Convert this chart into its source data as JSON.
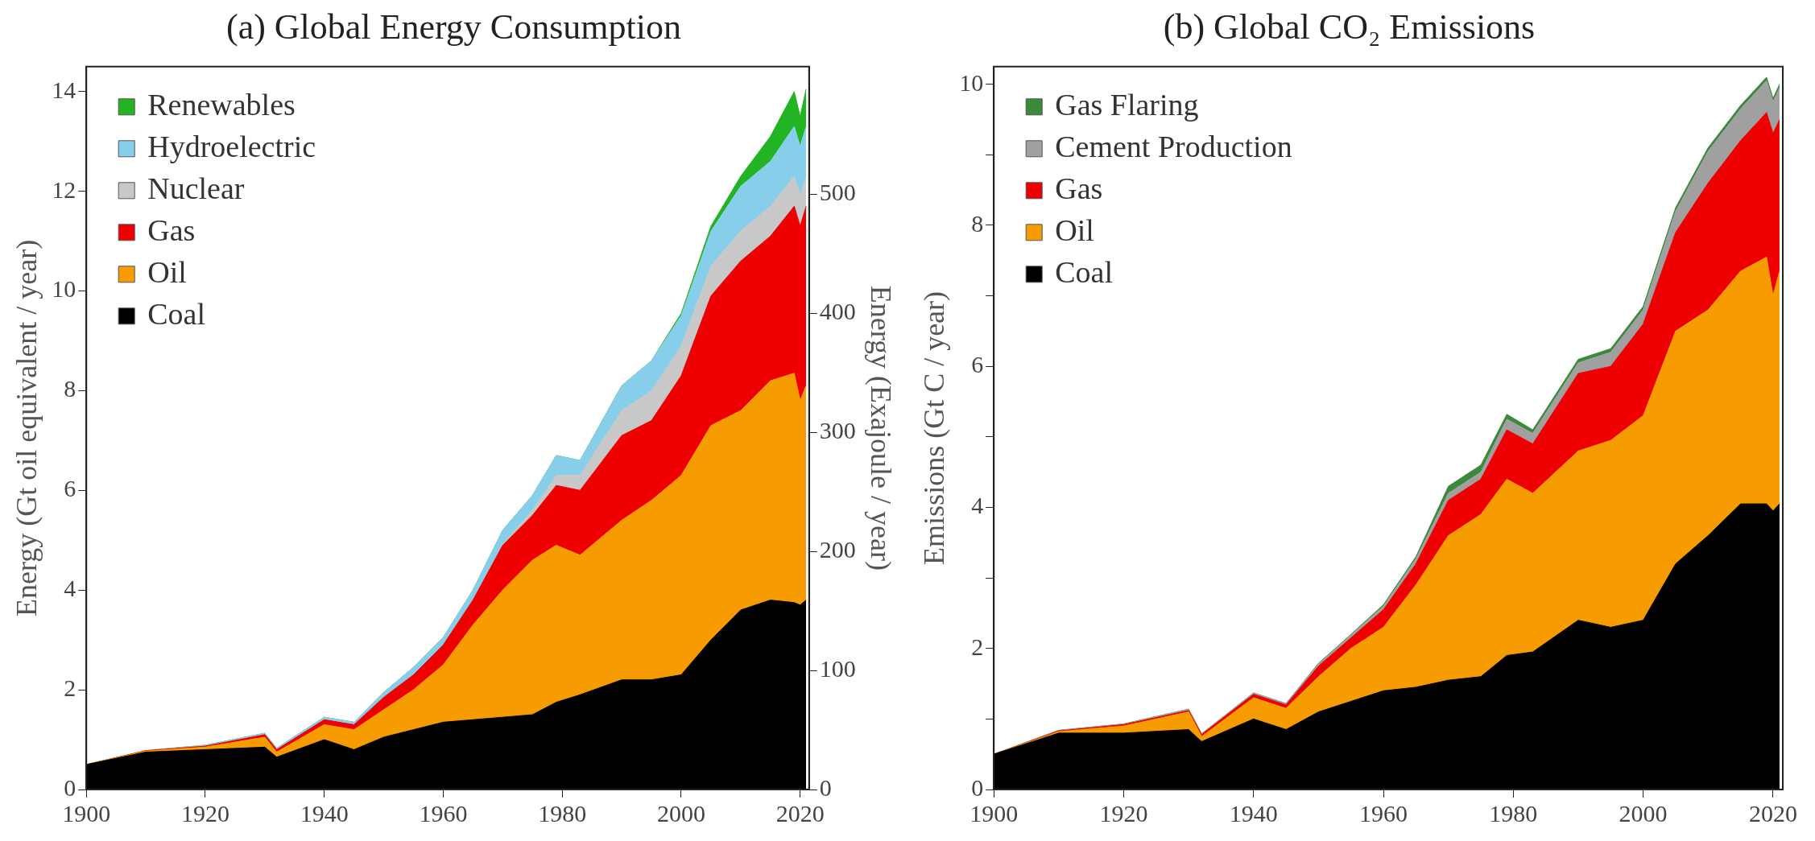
{
  "chart_data": [
    {
      "type": "area",
      "title": "(a) Global Energy Consumption",
      "ylabel": "Energy (Gt oil equivalent / year)",
      "y2label": "Energy (Exajoule / year)",
      "stacked": true,
      "legend": "top left",
      "grid": false,
      "x": [
        1900,
        1910,
        1920,
        1930,
        1932,
        1940,
        1945,
        1950,
        1955,
        1960,
        1965,
        1970,
        1975,
        1979,
        1983,
        1990,
        1995,
        2000,
        2005,
        2010,
        2015,
        2019,
        2020,
        2021
      ],
      "xlim": [
        1900,
        2021.5
      ],
      "xticks": [
        1900,
        1920,
        1940,
        1960,
        1980,
        2000,
        2020
      ],
      "ylim": [
        0,
        14.5
      ],
      "yticks": [
        0,
        2,
        4,
        6,
        8,
        10,
        12,
        14
      ],
      "y2lim": [
        0,
        607
      ],
      "y2ticks": [
        0,
        100,
        200,
        300,
        400,
        500
      ],
      "series": [
        {
          "name": "Coal",
          "color": "#000000",
          "values": [
            0.5,
            0.75,
            0.8,
            0.85,
            0.65,
            1.0,
            0.8,
            1.05,
            1.2,
            1.35,
            1.4,
            1.45,
            1.5,
            1.75,
            1.9,
            2.2,
            2.2,
            2.3,
            3.0,
            3.6,
            3.8,
            3.75,
            3.7,
            3.8
          ]
        },
        {
          "name": "Oil",
          "color": "#f79c00",
          "values": [
            0,
            0.02,
            0.05,
            0.2,
            0.1,
            0.3,
            0.4,
            0.55,
            0.8,
            1.15,
            1.9,
            2.55,
            3.1,
            3.15,
            2.8,
            3.2,
            3.6,
            4.0,
            4.3,
            4.0,
            4.4,
            4.6,
            4.1,
            4.3
          ]
        },
        {
          "name": "Gas",
          "color": "#ee0000",
          "values": [
            0,
            0.01,
            0.02,
            0.05,
            0.05,
            0.1,
            0.1,
            0.25,
            0.3,
            0.4,
            0.5,
            0.9,
            0.9,
            1.2,
            1.3,
            1.7,
            1.6,
            2.0,
            2.6,
            3.0,
            2.9,
            3.35,
            3.5,
            3.6
          ]
        },
        {
          "name": "Nuclear",
          "color": "#c8c8c8",
          "values": [
            0,
            0,
            0,
            0,
            0,
            0,
            0,
            0,
            0,
            0,
            0,
            0.02,
            0.1,
            0.2,
            0.3,
            0.5,
            0.6,
            0.6,
            0.6,
            0.6,
            0.6,
            0.6,
            0.6,
            0.6
          ]
        },
        {
          "name": "Hydroelectric",
          "color": "#87ceeb",
          "values": [
            0,
            0,
            0.02,
            0.03,
            0.03,
            0.05,
            0.05,
            0.1,
            0.15,
            0.15,
            0.2,
            0.28,
            0.3,
            0.4,
            0.3,
            0.5,
            0.6,
            0.6,
            0.7,
            0.9,
            0.9,
            1.0,
            1.0,
            1.0
          ]
        },
        {
          "name": "Renewables",
          "color": "#22b422",
          "values": [
            0,
            0,
            0,
            0,
            0,
            0,
            0,
            0,
            0,
            0,
            0,
            0,
            0,
            0,
            0,
            0,
            0,
            0.05,
            0.1,
            0.2,
            0.5,
            0.7,
            0.6,
            0.75
          ]
        }
      ]
    },
    {
      "type": "area",
      "title": "(b) Global CO₂ Emissions",
      "ylabel": "Emissions (Gt C / year)",
      "stacked": true,
      "legend": "top left",
      "grid": false,
      "x": [
        1900,
        1910,
        1920,
        1930,
        1932,
        1940,
        1945,
        1950,
        1955,
        1960,
        1965,
        1970,
        1975,
        1979,
        1983,
        1990,
        1995,
        2000,
        2005,
        2010,
        2015,
        2019,
        2020,
        2021
      ],
      "xlim": [
        1900,
        2021.5
      ],
      "xticks": [
        1900,
        1920,
        1940,
        1960,
        1980,
        2000,
        2020
      ],
      "ylim": [
        0,
        10.25
      ],
      "yticks": [
        0,
        {
          "value": 1,
          "label": null
        },
        2,
        {
          "value": 3,
          "label": null
        },
        4,
        {
          "value": 5,
          "label": null
        },
        6,
        {
          "value": 7,
          "label": null
        },
        8,
        {
          "value": 9,
          "label": null
        },
        10
      ],
      "series": [
        {
          "name": "Coal",
          "color": "#000000",
          "values": [
            0.5,
            0.8,
            0.8,
            0.85,
            0.68,
            1.0,
            0.85,
            1.1,
            1.25,
            1.4,
            1.45,
            1.55,
            1.6,
            1.9,
            1.95,
            2.4,
            2.3,
            2.4,
            3.2,
            3.6,
            4.05,
            4.05,
            3.95,
            4.05
          ]
        },
        {
          "name": "Oil",
          "color": "#f79c00",
          "values": [
            0,
            0.02,
            0.1,
            0.25,
            0.07,
            0.3,
            0.3,
            0.5,
            0.75,
            0.9,
            1.45,
            2.05,
            2.3,
            2.5,
            2.25,
            2.4,
            2.65,
            2.9,
            3.3,
            3.2,
            3.3,
            3.5,
            3.05,
            3.3
          ]
        },
        {
          "name": "Gas",
          "color": "#ee0000",
          "values": [
            0,
            0.01,
            0.02,
            0.02,
            0.03,
            0.05,
            0.05,
            0.15,
            0.15,
            0.25,
            0.3,
            0.5,
            0.5,
            0.7,
            0.7,
            1.1,
            1.05,
            1.3,
            1.4,
            1.8,
            1.85,
            2.05,
            2.3,
            2.15
          ]
        },
        {
          "name": "Cement Production",
          "color": "#a0a0a0",
          "values": [
            0,
            0.01,
            0.01,
            0.02,
            0.01,
            0.02,
            0.02,
            0.03,
            0.04,
            0.05,
            0.07,
            0.1,
            0.1,
            0.15,
            0.15,
            0.15,
            0.2,
            0.2,
            0.3,
            0.45,
            0.45,
            0.45,
            0.45,
            0.45
          ]
        },
        {
          "name": "Gas Flaring",
          "color": "#3a8a3a",
          "values": [
            0,
            0,
            0,
            0,
            0,
            0,
            0,
            0.01,
            0.01,
            0.02,
            0.03,
            0.1,
            0.1,
            0.07,
            0.05,
            0.05,
            0.05,
            0.05,
            0.05,
            0.05,
            0.05,
            0.05,
            0.05,
            0.05
          ]
        }
      ]
    }
  ]
}
